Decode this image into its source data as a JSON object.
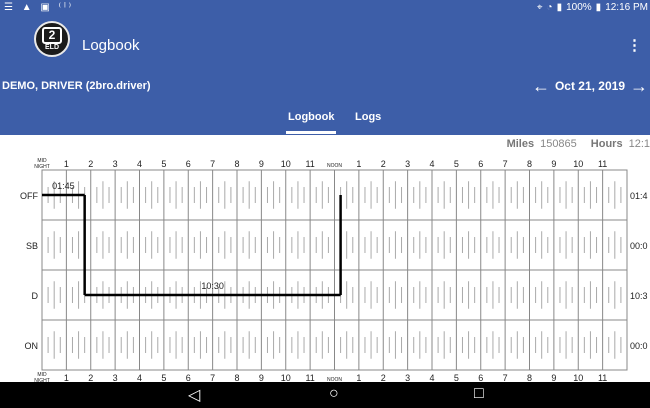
{
  "status": {
    "left_icons": [
      "menu-icon",
      "warning-icon",
      "image-icon",
      "signal-icon"
    ],
    "battery": "100%",
    "time": "12:16 PM"
  },
  "app": {
    "logo_text": "2",
    "logo_sub": "ELD",
    "title": "Logbook"
  },
  "driver": {
    "name": "DEMO, DRIVER (2bro.driver)",
    "date": "Oct 21, 2019"
  },
  "tabs": [
    {
      "label": "Logbook",
      "active": true
    },
    {
      "label": "Logs",
      "active": false
    }
  ],
  "summary": {
    "miles_label": "Miles",
    "miles_value": "150865",
    "hours_label": "Hours",
    "hours_value": "12:1"
  },
  "graph": {
    "hour_labels": [
      "MID\nNIGHT",
      "1",
      "2",
      "3",
      "4",
      "5",
      "6",
      "7",
      "8",
      "9",
      "10",
      "11",
      "NOON",
      "1",
      "2",
      "3",
      "4",
      "5",
      "6",
      "7",
      "8",
      "9",
      "10",
      "11"
    ],
    "rows": [
      {
        "label": "OFF",
        "total": "01:4"
      },
      {
        "label": "SB",
        "total": "00:0"
      },
      {
        "label": "D",
        "total": "10:3"
      },
      {
        "label": "ON",
        "total": "00:0"
      }
    ],
    "segments": [
      {
        "row": 0,
        "start": 0.0,
        "end": 1.75,
        "label": "01:45"
      },
      {
        "row": 2,
        "start": 1.75,
        "end": 12.25,
        "label": "10:30"
      },
      {
        "row": 0,
        "start": 12.25,
        "end": 12.25,
        "label": ""
      }
    ]
  },
  "colors": {
    "accent": "#3d5ea8",
    "line": "#000000",
    "grid": "#888888"
  },
  "nav": {
    "back": "◁",
    "home": "○",
    "recents": "□"
  }
}
